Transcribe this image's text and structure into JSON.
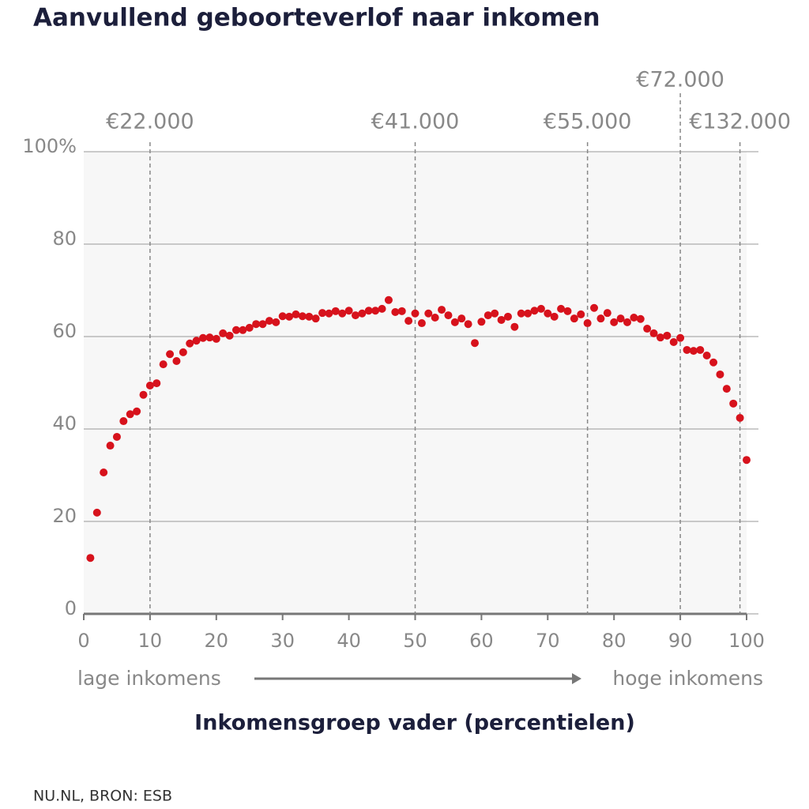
{
  "chart_data": {
    "type": "scatter",
    "title": "Aanvullend geboorteverlof naar inkomen",
    "x_label": "Inkomensgroep vader (percentielen)",
    "x_low_label": "lage inkomens",
    "x_high_label": "hoge inkomens",
    "source": "NU.NL, BRON: ESB",
    "color": "#d7121c",
    "x": [
      1,
      2,
      3,
      4,
      5,
      6,
      7,
      8,
      9,
      10,
      11,
      12,
      13,
      14,
      15,
      16,
      17,
      18,
      19,
      20,
      21,
      22,
      23,
      24,
      25,
      26,
      27,
      28,
      29,
      30,
      31,
      32,
      33,
      34,
      35,
      36,
      37,
      38,
      39,
      40,
      41,
      42,
      43,
      44,
      45,
      46,
      47,
      48,
      49,
      50,
      51,
      52,
      53,
      54,
      55,
      56,
      57,
      58,
      59,
      60,
      61,
      62,
      63,
      64,
      65,
      66,
      67,
      68,
      69,
      70,
      71,
      72,
      73,
      74,
      75,
      76,
      77,
      78,
      79,
      80,
      81,
      82,
      83,
      84,
      85,
      86,
      87,
      88,
      89,
      90,
      91,
      92,
      93,
      94,
      95,
      96,
      97,
      98,
      99,
      100
    ],
    "values": [
      12.1,
      21.9,
      30.6,
      36.4,
      38.3,
      41.7,
      43.2,
      43.8,
      47.4,
      49.4,
      49.9,
      54.0,
      56.2,
      54.7,
      56.6,
      58.5,
      59.1,
      59.7,
      59.8,
      59.5,
      60.7,
      60.2,
      61.4,
      61.4,
      61.9,
      62.7,
      62.7,
      63.4,
      63.1,
      64.4,
      64.3,
      64.8,
      64.4,
      64.3,
      63.9,
      65.1,
      65.0,
      65.5,
      65.0,
      65.6,
      64.6,
      65.0,
      65.6,
      65.6,
      66.0,
      67.9,
      65.3,
      65.5,
      63.4,
      65.0,
      62.9,
      65.0,
      64.1,
      65.8,
      64.6,
      63.1,
      63.9,
      62.7,
      58.6,
      63.2,
      64.6,
      65.0,
      63.6,
      64.3,
      62.1,
      65.0,
      65.0,
      65.6,
      66.0,
      65.0,
      64.3,
      66.0,
      65.5,
      63.9,
      64.8,
      62.9,
      66.2,
      63.9,
      65.1,
      63.1,
      63.9,
      63.1,
      64.1,
      63.8,
      61.7,
      60.7,
      59.8,
      60.2,
      58.8,
      59.7,
      57.1,
      56.9,
      57.1,
      55.9,
      54.4,
      51.8,
      48.7,
      45.5,
      42.4,
      33.3
    ],
    "xlim": [
      0,
      100
    ],
    "xticks": [
      0,
      10,
      20,
      30,
      40,
      50,
      60,
      70,
      80,
      90,
      100
    ],
    "ylim": [
      0,
      100
    ],
    "yticks": [
      0,
      20,
      40,
      60,
      80,
      {
        "value": 100,
        "label": "100%"
      }
    ],
    "grid": true,
    "reference_lines": [
      {
        "x": 10,
        "label": "€22.000"
      },
      {
        "x": 50,
        "label": "€41.000"
      },
      {
        "x": 76,
        "label": "€55.000"
      },
      {
        "x": 90,
        "label": "€72.000"
      },
      {
        "x": 99,
        "label": "€132.000"
      }
    ]
  }
}
